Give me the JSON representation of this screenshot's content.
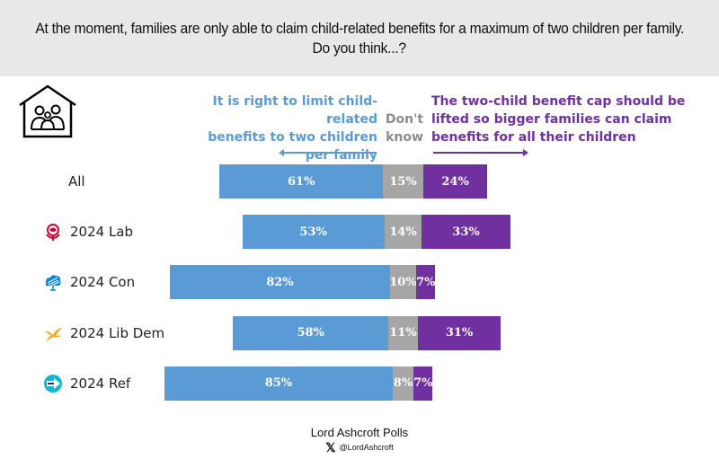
{
  "header": {
    "question_line1": "At the moment, families are only able to claim child-related benefits for a maximum of two children per family.",
    "question_line2": "Do you think...?"
  },
  "icons": {
    "header_icon": "house-family-icon"
  },
  "legend": {
    "left": [
      "It is right to limit child-related",
      "benefits to two children",
      "per family"
    ],
    "middle": [
      "Don't",
      "know"
    ],
    "right": [
      "The two-child benefit cap should be",
      "lifted so bigger families can claim",
      "benefits for all their children"
    ]
  },
  "colors": {
    "limit": "#5b9bd5",
    "dont_know": "#a6a6a6",
    "lift": "#7030a0",
    "labour": "#d50032",
    "conservative": "#0087dc",
    "libdem": "#faa61a",
    "reform": "#12b6cf"
  },
  "chart_data": {
    "type": "bar",
    "orientation": "horizontal",
    "stacked": true,
    "diverging": true,
    "title": "At the moment, families are only able to claim child-related benefits for a maximum of two children per family. Do you think...?",
    "categories": [
      "All",
      "2024 Lab",
      "2024 Con",
      "2024 Lib Dem",
      "2024 Ref"
    ],
    "category_icons": [
      "",
      "labour-rose-icon",
      "conservative-tree-icon",
      "libdem-bird-icon",
      "reform-arrow-icon"
    ],
    "series": [
      {
        "name": "It is right to limit child-related benefits to two children per family",
        "values": [
          61,
          53,
          82,
          58,
          85
        ],
        "labels": [
          "61%",
          "53%",
          "82%",
          "58%",
          "85%"
        ]
      },
      {
        "name": "Don't know",
        "values": [
          15,
          14,
          10,
          11,
          8
        ],
        "labels": [
          "15%",
          "14%",
          "10%",
          "11%",
          "8%"
        ]
      },
      {
        "name": "The two-child benefit cap should be lifted so bigger families can claim benefits for all their children",
        "values": [
          24,
          33,
          7,
          31,
          7
        ],
        "labels": [
          "24%",
          "33%",
          "7%",
          "31%",
          "7%"
        ]
      }
    ],
    "unit": "%",
    "grid": false,
    "legend": "top"
  },
  "footer": {
    "source": "Lord Ashcroft Polls",
    "x_icon": "x-logo-icon",
    "handle": "@LordAshcroft"
  }
}
